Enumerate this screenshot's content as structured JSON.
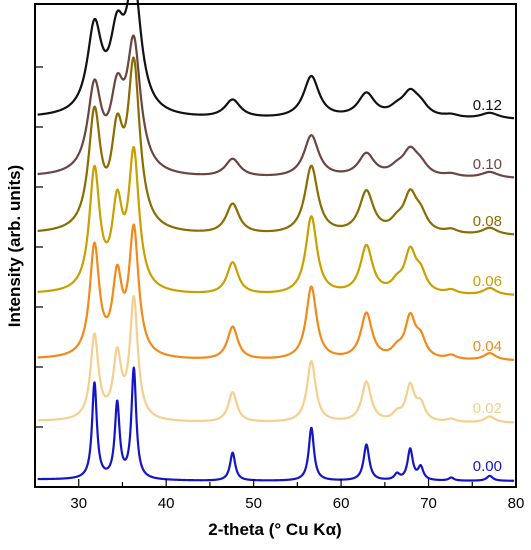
{
  "chart_data": {
    "type": "line",
    "title": "",
    "xlabel": "2-theta (° Cu Kα)",
    "ylabel": "Intensity (arb. units)",
    "xlim": [
      25,
      80
    ],
    "x_ticks": [
      "30",
      "40",
      "50",
      "60",
      "70",
      "80"
    ],
    "grid": false,
    "legend": "labels at right end of each trace",
    "peaks": [
      {
        "center": 31.8,
        "width": 0.55
      },
      {
        "center": 34.4,
        "width": 0.55
      },
      {
        "center": 36.3,
        "width": 0.55
      },
      {
        "center": 47.6,
        "width": 0.6
      },
      {
        "center": 56.6,
        "width": 0.6
      },
      {
        "center": 62.9,
        "width": 0.65
      },
      {
        "center": 66.4,
        "width": 0.6
      },
      {
        "center": 67.9,
        "width": 0.6
      },
      {
        "center": 69.1,
        "width": 0.6
      },
      {
        "center": 72.6,
        "width": 0.6
      },
      {
        "center": 77.0,
        "width": 0.7
      }
    ],
    "series": [
      {
        "name": "0.00",
        "color": "#1515c8",
        "offset": 0,
        "width_scale": 0.6,
        "heights": [
          96,
          75,
          110,
          28,
          53,
          36,
          6,
          31,
          13,
          3,
          5
        ]
      },
      {
        "name": "0.02",
        "color": "#f5cf8e",
        "offset": 58,
        "width_scale": 1.0,
        "heights": [
          84,
          62,
          120,
          30,
          61,
          40,
          7,
          35,
          16,
          3,
          6
        ]
      },
      {
        "name": "0.04",
        "color": "#f2891a",
        "offset": 120,
        "width_scale": 1.2,
        "heights": [
          110,
          75,
          125,
          33,
          73,
          46,
          8,
          40,
          18,
          4,
          7
        ]
      },
      {
        "name": "0.06",
        "color": "#c9a000",
        "offset": 185,
        "width_scale": 1.3,
        "heights": [
          120,
          80,
          135,
          32,
          78,
          48,
          9,
          40,
          18,
          4,
          7
        ]
      },
      {
        "name": "0.08",
        "color": "#8a6c00",
        "offset": 245,
        "width_scale": 1.5,
        "heights": [
          115,
          85,
          160,
          30,
          68,
          42,
          9,
          36,
          16,
          4,
          7
        ]
      },
      {
        "name": "0.10",
        "color": "#6b4540",
        "offset": 302,
        "width_scale": 1.7,
        "heights": [
          85,
          70,
          125,
          18,
          42,
          23,
          7,
          24,
          10,
          3,
          6
        ]
      },
      {
        "name": "0.12",
        "color": "#111111",
        "offset": 361,
        "width_scale": 1.8,
        "heights": [
          85,
          70,
          125,
          18,
          42,
          24,
          7,
          22,
          10,
          3,
          6
        ]
      }
    ]
  }
}
